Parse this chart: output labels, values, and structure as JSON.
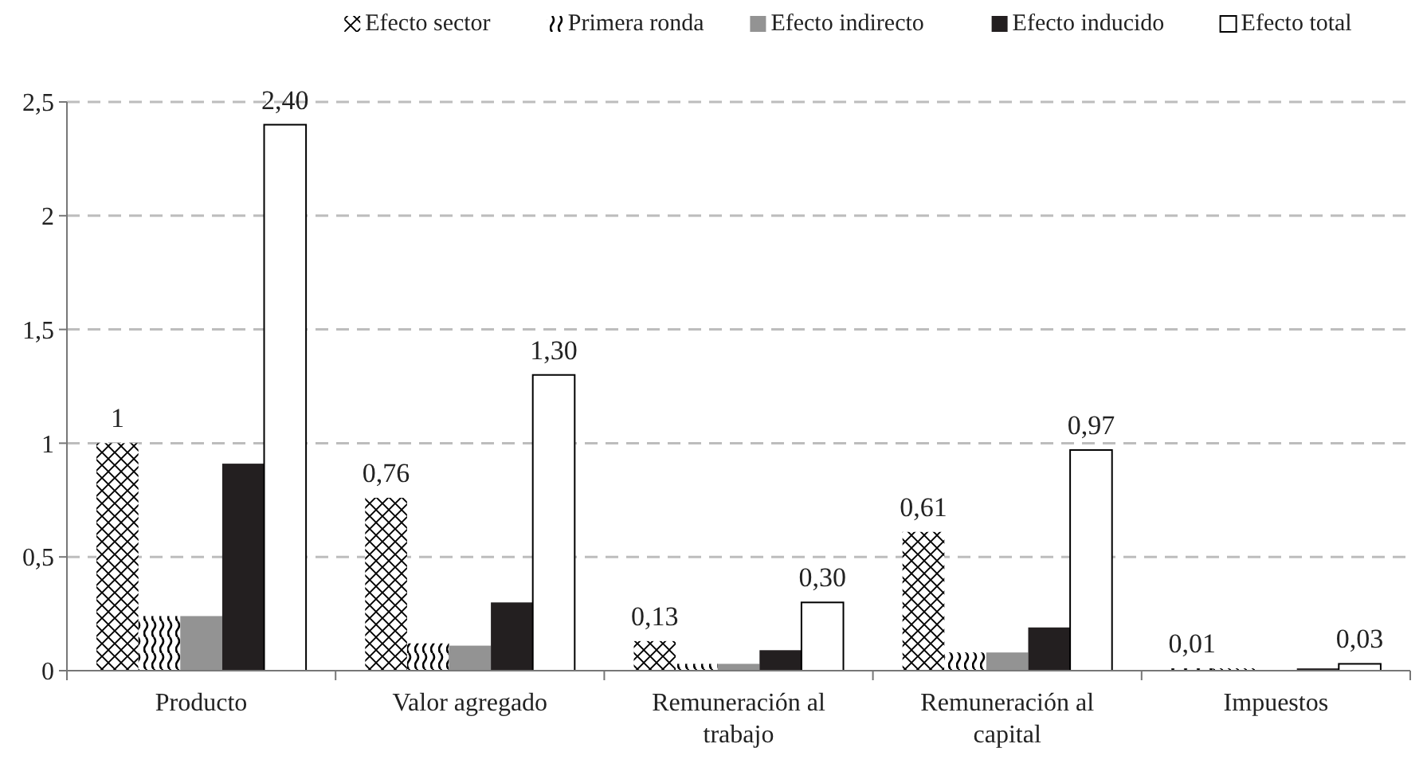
{
  "chart_data": {
    "type": "bar",
    "categories": [
      "Producto",
      "Valor agregado",
      "Remuneración al trabajo",
      "Remuneración al capital",
      "Impuestos"
    ],
    "series": [
      {
        "name": "Efecto sector",
        "color": "#000000",
        "values": [
          1,
          0.76,
          0.13,
          0.61,
          0.01
        ],
        "value_labels": [
          "1",
          "0,76",
          "0,13",
          "0,61",
          "0,01"
        ]
      },
      {
        "name": "Primera ronda",
        "color": "#000000",
        "values": [
          0.24,
          0.12,
          0.03,
          0.08,
          0.01
        ]
      },
      {
        "name": "Efecto indirecto",
        "color": "#939393",
        "values": [
          0.24,
          0.11,
          0.03,
          0.08,
          0
        ]
      },
      {
        "name": "Efecto inducido",
        "color": "#231f20",
        "values": [
          0.91,
          0.3,
          0.09,
          0.19,
          0.01
        ]
      },
      {
        "name": "Efecto total",
        "color": "#ffffff",
        "values": [
          2.4,
          1.3,
          0.3,
          0.97,
          0.03
        ],
        "value_labels": [
          "2,40",
          "1,30",
          "0,30",
          "0,97",
          "0,03"
        ]
      }
    ],
    "ylim": [
      0,
      2.5
    ],
    "yticks": [
      {
        "value": 0,
        "label": "0"
      },
      {
        "value": 0.5,
        "label": "0,5"
      },
      {
        "value": 1,
        "label": "1"
      },
      {
        "value": 1.5,
        "label": "1,5"
      },
      {
        "value": 2,
        "label": "2"
      },
      {
        "value": 2.5,
        "label": "2,5"
      }
    ],
    "grid": "y",
    "legend": "top right"
  }
}
